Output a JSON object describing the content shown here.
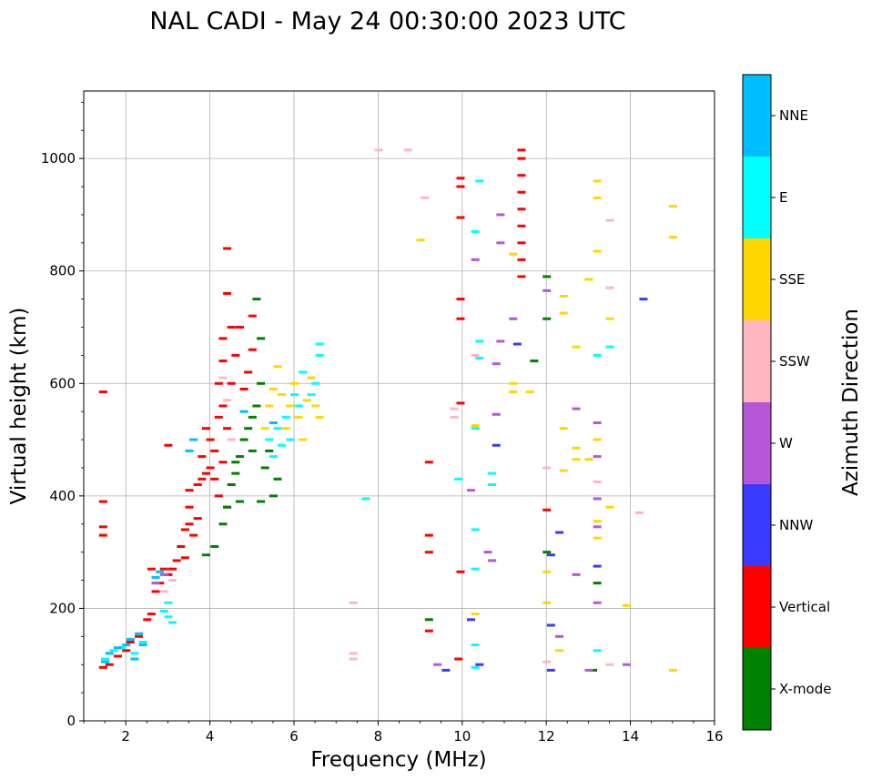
{
  "chart_data": {
    "type": "scatter",
    "title": "NAL CADI - May 24 00:30:00 2023 UTC",
    "xlabel": "Frequency (MHz)",
    "ylabel": "Virtual height (km)",
    "xlim": [
      1,
      16
    ],
    "ylim": [
      0,
      1120
    ],
    "xticks": [
      2,
      4,
      6,
      8,
      10,
      12,
      14,
      16
    ],
    "yticks": [
      0,
      200,
      400,
      600,
      800,
      1000
    ],
    "grid": true,
    "colorbar": {
      "label": "Azimuth Direction",
      "categories": [
        {
          "name": "X-mode",
          "color": "#008000"
        },
        {
          "name": "Vertical",
          "color": "#ff0000"
        },
        {
          "name": "NNW",
          "color": "#3a3aff"
        },
        {
          "name": "W",
          "color": "#b557d6"
        },
        {
          "name": "SSW",
          "color": "#ffb6c1"
        },
        {
          "name": "SSE",
          "color": "#ffd700"
        },
        {
          "name": "E",
          "color": "#00ffff"
        },
        {
          "name": "NNE",
          "color": "#00bfff"
        }
      ]
    },
    "series": [
      {
        "name": "Vertical",
        "points": [
          [
            1.45,
            95
          ],
          [
            1.45,
            330
          ],
          [
            1.45,
            345
          ],
          [
            1.45,
            390
          ],
          [
            1.45,
            585
          ],
          [
            1.6,
            100
          ],
          [
            1.8,
            115
          ],
          [
            2.0,
            125
          ],
          [
            2.1,
            140
          ],
          [
            2.3,
            150
          ],
          [
            2.5,
            180
          ],
          [
            2.6,
            190
          ],
          [
            2.6,
            270
          ],
          [
            2.7,
            230
          ],
          [
            2.8,
            245
          ],
          [
            2.9,
            270
          ],
          [
            3.0,
            260
          ],
          [
            3.0,
            490
          ],
          [
            3.1,
            270
          ],
          [
            3.2,
            285
          ],
          [
            3.3,
            310
          ],
          [
            3.4,
            290
          ],
          [
            3.4,
            340
          ],
          [
            3.5,
            350
          ],
          [
            3.5,
            380
          ],
          [
            3.5,
            410
          ],
          [
            3.6,
            330
          ],
          [
            3.7,
            360
          ],
          [
            3.7,
            420
          ],
          [
            3.8,
            430
          ],
          [
            3.8,
            470
          ],
          [
            3.9,
            440
          ],
          [
            3.9,
            520
          ],
          [
            4.0,
            450
          ],
          [
            4.0,
            500
          ],
          [
            4.1,
            430
          ],
          [
            4.1,
            480
          ],
          [
            4.2,
            400
          ],
          [
            4.2,
            540
          ],
          [
            4.2,
            600
          ],
          [
            4.3,
            460
          ],
          [
            4.3,
            560
          ],
          [
            4.3,
            640
          ],
          [
            4.3,
            680
          ],
          [
            4.4,
            380
          ],
          [
            4.4,
            520
          ],
          [
            4.4,
            760
          ],
          [
            4.4,
            840
          ],
          [
            4.5,
            600
          ],
          [
            4.5,
            700
          ],
          [
            4.6,
            650
          ],
          [
            4.7,
            700
          ],
          [
            4.8,
            590
          ],
          [
            4.9,
            620
          ],
          [
            5.0,
            660
          ],
          [
            5.0,
            720
          ],
          [
            9.2,
            160
          ],
          [
            9.2,
            300
          ],
          [
            9.2,
            330
          ],
          [
            9.2,
            460
          ],
          [
            9.9,
            110
          ],
          [
            9.95,
            265
          ],
          [
            9.95,
            565
          ],
          [
            9.95,
            715
          ],
          [
            9.95,
            750
          ],
          [
            9.95,
            895
          ],
          [
            9.95,
            950
          ],
          [
            9.95,
            965
          ],
          [
            11.4,
            790
          ],
          [
            11.4,
            820
          ],
          [
            11.4,
            850
          ],
          [
            11.4,
            880
          ],
          [
            11.4,
            910
          ],
          [
            11.4,
            940
          ],
          [
            11.4,
            970
          ],
          [
            11.4,
            1000
          ],
          [
            11.4,
            1015
          ],
          [
            12.0,
            375
          ]
        ]
      },
      {
        "name": "X-mode",
        "points": [
          [
            3.9,
            295
          ],
          [
            4.1,
            310
          ],
          [
            4.3,
            350
          ],
          [
            4.4,
            380
          ],
          [
            4.5,
            420
          ],
          [
            4.6,
            440
          ],
          [
            4.6,
            460
          ],
          [
            4.7,
            470
          ],
          [
            4.7,
            390
          ],
          [
            4.8,
            500
          ],
          [
            4.9,
            520
          ],
          [
            5.0,
            540
          ],
          [
            5.0,
            480
          ],
          [
            5.1,
            560
          ],
          [
            5.2,
            600
          ],
          [
            5.2,
            390
          ],
          [
            5.3,
            450
          ],
          [
            5.4,
            480
          ],
          [
            5.5,
            400
          ],
          [
            5.6,
            430
          ],
          [
            5.1,
            750
          ],
          [
            5.2,
            680
          ],
          [
            9.2,
            180
          ],
          [
            11.7,
            640
          ],
          [
            12.0,
            300
          ],
          [
            12.0,
            715
          ],
          [
            12.0,
            790
          ],
          [
            13.1,
            90
          ],
          [
            13.2,
            245
          ]
        ]
      },
      {
        "name": "NNW",
        "points": [
          [
            9.6,
            90
          ],
          [
            10.4,
            100
          ],
          [
            10.8,
            490
          ],
          [
            11.3,
            670
          ],
          [
            12.1,
            90
          ],
          [
            12.1,
            170
          ],
          [
            12.1,
            295
          ],
          [
            12.3,
            335
          ],
          [
            13.2,
            275
          ],
          [
            14.3,
            750
          ],
          [
            10.2,
            180
          ]
        ]
      },
      {
        "name": "W",
        "points": [
          [
            2.7,
            245
          ],
          [
            2.9,
            260
          ],
          [
            9.4,
            100
          ],
          [
            10.2,
            410
          ],
          [
            10.6,
            300
          ],
          [
            10.7,
            285
          ],
          [
            10.8,
            545
          ],
          [
            10.8,
            635
          ],
          [
            10.9,
            675
          ],
          [
            10.9,
            850
          ],
          [
            10.9,
            900
          ],
          [
            11.2,
            715
          ],
          [
            12.0,
            765
          ],
          [
            12.3,
            150
          ],
          [
            12.7,
            260
          ],
          [
            12.7,
            555
          ],
          [
            13.0,
            90
          ],
          [
            13.2,
            210
          ],
          [
            13.2,
            345
          ],
          [
            13.2,
            395
          ],
          [
            13.2,
            470
          ],
          [
            13.2,
            530
          ],
          [
            13.9,
            100
          ],
          [
            10.3,
            820
          ]
        ]
      },
      {
        "name": "SSW",
        "points": [
          [
            2.9,
            230
          ],
          [
            3.1,
            250
          ],
          [
            4.3,
            610
          ],
          [
            4.4,
            570
          ],
          [
            4.5,
            500
          ],
          [
            7.4,
            110
          ],
          [
            7.4,
            120
          ],
          [
            7.4,
            210
          ],
          [
            8.0,
            1015
          ],
          [
            8.7,
            1015
          ],
          [
            9.1,
            930
          ],
          [
            9.8,
            540
          ],
          [
            9.8,
            555
          ],
          [
            10.3,
            650
          ],
          [
            12.0,
            450
          ],
          [
            12.0,
            105
          ],
          [
            13.2,
            425
          ],
          [
            13.5,
            890
          ],
          [
            13.5,
            770
          ],
          [
            13.5,
            100
          ],
          [
            14.2,
            370
          ]
        ]
      },
      {
        "name": "SSE",
        "points": [
          [
            5.3,
            520
          ],
          [
            5.4,
            560
          ],
          [
            5.5,
            590
          ],
          [
            5.6,
            630
          ],
          [
            5.7,
            580
          ],
          [
            5.8,
            520
          ],
          [
            5.9,
            560
          ],
          [
            6.0,
            600
          ],
          [
            6.1,
            540
          ],
          [
            6.2,
            500
          ],
          [
            6.3,
            570
          ],
          [
            6.4,
            610
          ],
          [
            6.5,
            560
          ],
          [
            6.6,
            540
          ],
          [
            9.0,
            855
          ],
          [
            10.3,
            190
          ],
          [
            10.3,
            525
          ],
          [
            11.2,
            585
          ],
          [
            11.2,
            600
          ],
          [
            11.2,
            830
          ],
          [
            11.6,
            585
          ],
          [
            12.0,
            265
          ],
          [
            12.0,
            210
          ],
          [
            12.3,
            125
          ],
          [
            12.4,
            520
          ],
          [
            12.4,
            445
          ],
          [
            12.4,
            755
          ],
          [
            12.4,
            725
          ],
          [
            12.7,
            485
          ],
          [
            12.7,
            465
          ],
          [
            12.7,
            665
          ],
          [
            13.0,
            465
          ],
          [
            13.0,
            785
          ],
          [
            13.2,
            355
          ],
          [
            13.2,
            325
          ],
          [
            13.2,
            500
          ],
          [
            13.2,
            835
          ],
          [
            13.2,
            930
          ],
          [
            13.2,
            960
          ],
          [
            13.5,
            715
          ],
          [
            13.5,
            380
          ],
          [
            13.9,
            205
          ],
          [
            15.0,
            860
          ],
          [
            15.0,
            915
          ],
          [
            15.0,
            90
          ]
        ]
      },
      {
        "name": "E",
        "points": [
          [
            1.5,
            110
          ],
          [
            1.7,
            125
          ],
          [
            1.9,
            130
          ],
          [
            2.2,
            120
          ],
          [
            2.4,
            140
          ],
          [
            2.9,
            195
          ],
          [
            3.0,
            210
          ],
          [
            3.0,
            185
          ],
          [
            3.1,
            175
          ],
          [
            5.4,
            500
          ],
          [
            5.5,
            470
          ],
          [
            5.6,
            520
          ],
          [
            5.7,
            490
          ],
          [
            5.8,
            540
          ],
          [
            5.9,
            500
          ],
          [
            6.0,
            580
          ],
          [
            6.1,
            560
          ],
          [
            6.2,
            620
          ],
          [
            6.4,
            580
          ],
          [
            6.5,
            600
          ],
          [
            6.6,
            650
          ],
          [
            6.6,
            670
          ],
          [
            7.7,
            395
          ],
          [
            9.9,
            430
          ],
          [
            10.3,
            95
          ],
          [
            10.3,
            135
          ],
          [
            10.3,
            340
          ],
          [
            10.3,
            520
          ],
          [
            10.3,
            870
          ],
          [
            10.4,
            645
          ],
          [
            10.4,
            675
          ],
          [
            10.4,
            960
          ],
          [
            10.7,
            420
          ],
          [
            10.7,
            440
          ],
          [
            13.2,
            125
          ],
          [
            13.2,
            650
          ],
          [
            13.5,
            665
          ],
          [
            10.3,
            270
          ]
        ]
      },
      {
        "name": "NNE",
        "points": [
          [
            1.5,
            105
          ],
          [
            1.6,
            120
          ],
          [
            1.8,
            130
          ],
          [
            2.0,
            135
          ],
          [
            2.1,
            145
          ],
          [
            2.2,
            110
          ],
          [
            2.3,
            155
          ],
          [
            2.4,
            135
          ],
          [
            2.7,
            255
          ],
          [
            2.8,
            265
          ],
          [
            3.5,
            480
          ],
          [
            3.6,
            500
          ],
          [
            4.8,
            550
          ],
          [
            5.5,
            530
          ]
        ]
      }
    ]
  }
}
